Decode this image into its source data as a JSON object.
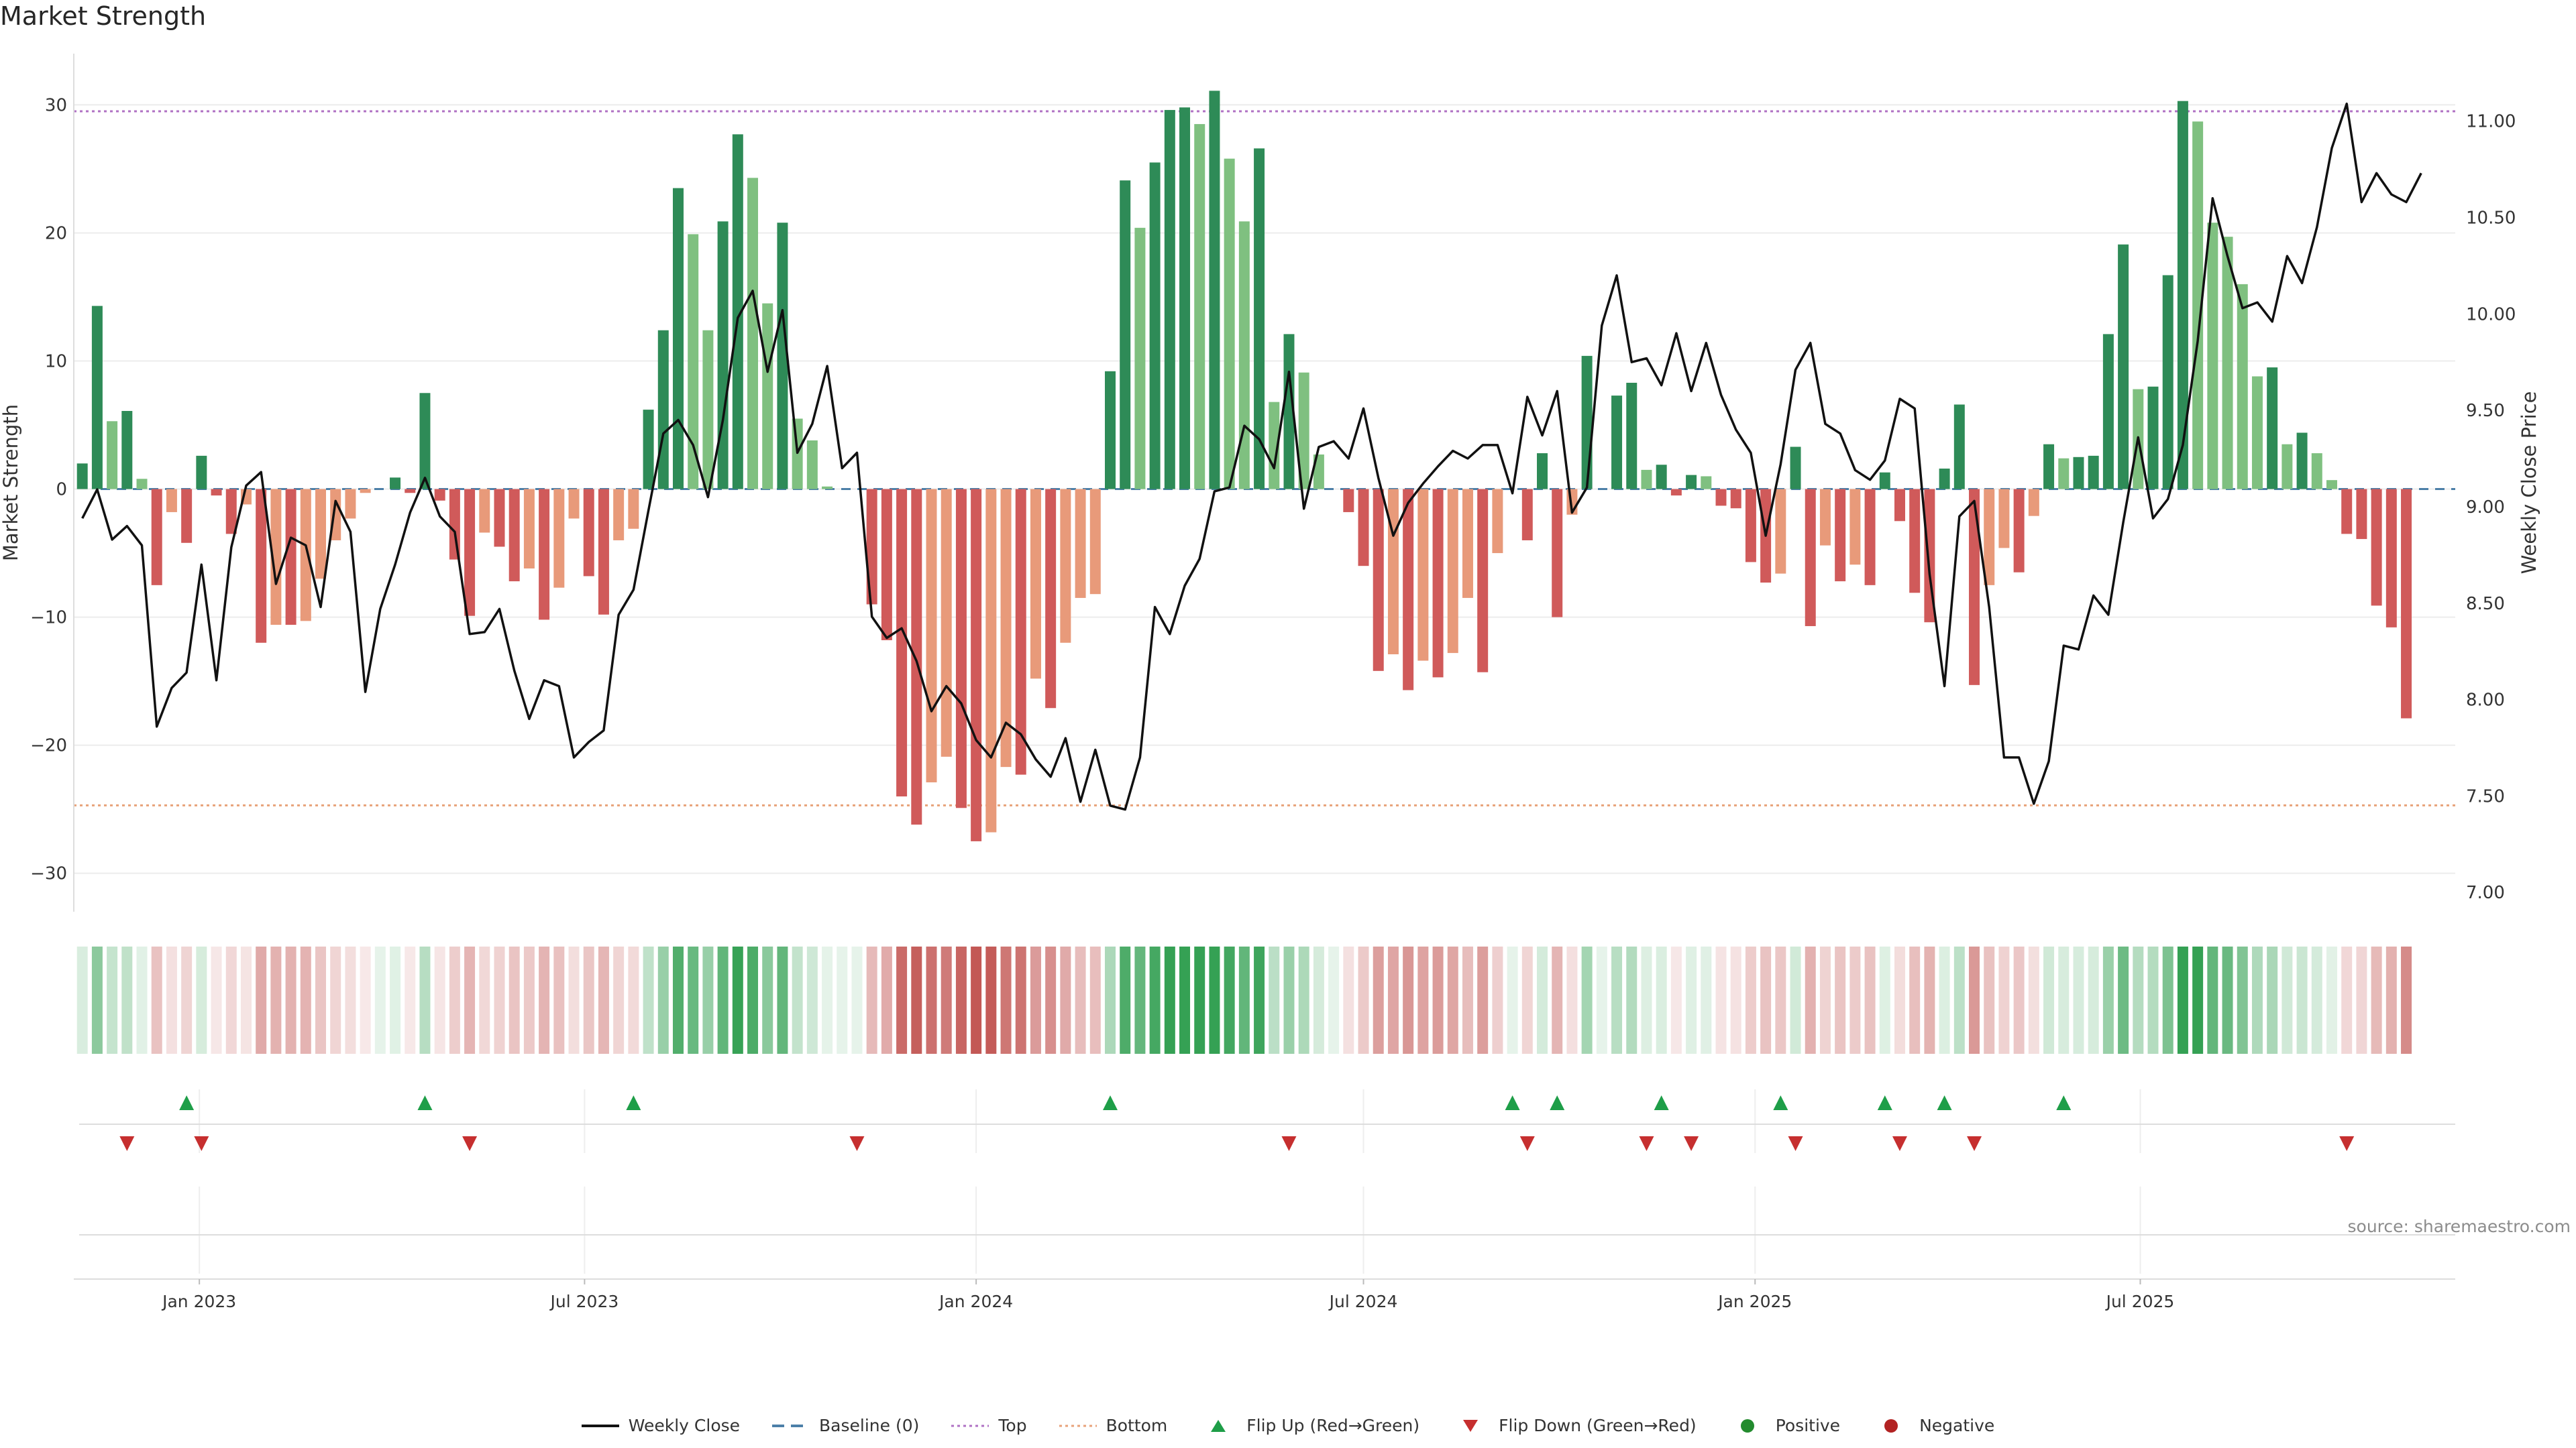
{
  "chart_data": {
    "type": "bar",
    "title": "Market Strength",
    "ylabel_left": "Market Strength",
    "ylabel_right": "Weekly Close Price",
    "ylim_left": [
      -33,
      34
    ],
    "ylim_right": [
      6.9,
      11.35
    ],
    "yticks_left": [
      30,
      20,
      10,
      0,
      -10,
      -20,
      -30
    ],
    "yticks_left_labels": [
      "30",
      "20",
      "10",
      "0",
      "−10",
      "−20",
      "−30"
    ],
    "yticks_right": [
      11.0,
      10.5,
      10.0,
      9.5,
      9.0,
      8.5,
      8.0,
      7.5,
      7.0
    ],
    "yticks_right_labels": [
      "11.00",
      "10.50",
      "10.00",
      "9.50",
      "9.00",
      "8.50",
      "8.00",
      "7.50",
      "7.00"
    ],
    "x_start": "2022-11-07",
    "x_step_days": 7,
    "xlim": [
      "2022-11-03",
      "2025-11-26"
    ],
    "xticks": [
      "2023-01-01",
      "2023-07-01",
      "2024-01-01",
      "2024-07-01",
      "2025-01-01",
      "2025-07-01"
    ],
    "xtick_labels": [
      "Jan 2023",
      "Jul 2023",
      "Jan 2024",
      "Jul 2024",
      "Jan 2025",
      "Jul 2025"
    ],
    "top_line": 29.5,
    "bottom_line": -24.7,
    "strength": [
      2,
      14.3,
      5.3,
      6.1,
      0.8,
      -7.5,
      -1.8,
      -4.2,
      2.6,
      -0.5,
      -3.5,
      -1.2,
      -12,
      -10.6,
      -10.6,
      -10.3,
      -7,
      -4,
      -2.3,
      -0.3,
      0,
      0.9,
      -0.3,
      7.5,
      -0.9,
      -5.5,
      -9.9,
      -3.4,
      -4.5,
      -7.2,
      -6.2,
      -10.2,
      -7.7,
      -2.3,
      -6.8,
      -9.8,
      -4,
      -3.1,
      6.2,
      12.4,
      23.5,
      19.9,
      12.4,
      20.9,
      27.7,
      24.3,
      14.5,
      20.8,
      5.5,
      3.8,
      0.2,
      0,
      0,
      -9,
      -11.8,
      -24,
      -26.2,
      -22.9,
      -20.9,
      -24.9,
      -27.5,
      -26.8,
      -21.7,
      -22.3,
      -14.8,
      -17.1,
      -12,
      -8.5,
      -8.2,
      9.2,
      24.1,
      20.4,
      25.5,
      29.6,
      29.8,
      28.5,
      31.1,
      25.8,
      20.9,
      26.6,
      6.8,
      12.1,
      9.1,
      2.7,
      0,
      -1.8,
      -6,
      -14.2,
      -12.9,
      -15.7,
      -13.4,
      -14.7,
      -12.8,
      -8.5,
      -14.3,
      -5,
      0,
      -4,
      2.8,
      -10,
      -2,
      10.4,
      0,
      7.3,
      8.3,
      1.5,
      1.9,
      -0.5,
      1.1,
      1,
      -1.3,
      -1.5,
      -5.7,
      -7.3,
      -6.6,
      3.3,
      -10.7,
      -4.4,
      -7.2,
      -5.9,
      -7.5,
      1.3,
      -2.5,
      -8.1,
      -10.4,
      1.6,
      6.6,
      -15.3,
      -7.5,
      -4.6,
      -6.5,
      -2.1,
      3.5,
      2.4,
      2.5,
      2.6,
      12.1,
      19.1,
      7.8,
      8,
      16.7,
      30.3,
      28.7,
      20.8,
      19.7,
      16,
      8.8,
      9.5,
      3.5,
      4.4,
      2.8,
      0.7,
      -3.5,
      -3.9,
      -9.1,
      -10.8,
      -17.9
    ],
    "weekly_close": [
      8.94,
      9.09,
      8.83,
      8.9,
      8.8,
      7.86,
      8.06,
      8.14,
      8.7,
      8.1,
      8.79,
      9.11,
      9.18,
      8.6,
      8.84,
      8.8,
      8.48,
      9.03,
      8.87,
      8.04,
      8.47,
      8.7,
      8.97,
      9.15,
      8.95,
      8.87,
      8.34,
      8.35,
      8.47,
      8.15,
      7.9,
      8.1,
      8.07,
      7.7,
      7.78,
      7.84,
      8.44,
      8.57,
      8.98,
      9.38,
      9.45,
      9.32,
      9.05,
      9.45,
      9.98,
      10.12,
      9.7,
      10.02,
      9.28,
      9.43,
      9.73,
      9.2,
      9.28,
      8.43,
      8.32,
      8.37,
      8.2,
      7.94,
      8.07,
      7.98,
      7.79,
      7.7,
      7.88,
      7.82,
      7.69,
      7.6,
      7.8,
      7.47,
      7.74,
      7.45,
      7.43,
      7.7,
      8.48,
      8.34,
      8.59,
      8.73,
      9.08,
      9.1,
      9.42,
      9.35,
      9.2,
      9.7,
      8.99,
      9.31,
      9.34,
      9.25,
      9.51,
      9.15,
      8.85,
      9.02,
      9.12,
      9.21,
      9.29,
      9.25,
      9.32,
      9.32,
      9.07,
      9.57,
      9.37,
      9.6,
      8.97,
      9.1,
      9.94,
      10.2,
      9.75,
      9.77,
      9.63,
      9.9,
      9.6,
      9.85,
      9.58,
      9.4,
      9.28,
      8.85,
      9.22,
      9.71,
      9.85,
      9.43,
      9.38,
      9.19,
      9.14,
      9.24,
      9.56,
      9.51,
      8.65,
      8.07,
      8.95,
      9.03,
      8.48,
      7.7,
      7.7,
      7.46,
      7.68,
      8.28,
      8.26,
      8.54,
      8.44,
      8.92,
      9.36,
      8.94,
      9.04,
      9.32,
      9.86,
      10.6,
      10.3,
      10.03,
      10.06,
      9.96,
      10.3,
      10.16,
      10.45,
      10.86,
      11.09,
      10.58,
      10.73,
      10.62,
      10.58,
      10.73
    ],
    "flip_up": [
      "2022-12-26",
      "2023-04-17",
      "2023-07-24",
      "2024-03-04",
      "2024-09-09",
      "2024-09-30",
      "2024-11-18",
      "2025-01-13",
      "2025-03-03",
      "2025-03-31",
      "2025-05-26"
    ],
    "flip_down": [
      "2022-11-28",
      "2023-01-02",
      "2023-05-08",
      "2023-11-06",
      "2024-05-27",
      "2024-09-16",
      "2024-11-11",
      "2024-12-02",
      "2025-01-20",
      "2025-03-10",
      "2025-04-14",
      "2025-10-06"
    ],
    "legend": [
      {
        "label": "Weekly Close",
        "symbol": "line",
        "color": "#111111"
      },
      {
        "label": "Baseline (0)",
        "symbol": "dash",
        "color": "#4c7fa8"
      },
      {
        "label": "Top",
        "symbol": "dotted",
        "color": "#b071c4"
      },
      {
        "label": "Bottom",
        "symbol": "dotted",
        "color": "#e8a27a"
      },
      {
        "label": "Flip Up (Red→Green)",
        "symbol": "triangle-up",
        "color": "#1e9e48"
      },
      {
        "label": "Flip Down (Green→Red)",
        "symbol": "triangle-down",
        "color": "#c62f2f"
      },
      {
        "label": "Positive",
        "symbol": "circle",
        "color": "#238b2e"
      },
      {
        "label": "Negative",
        "symbol": "circle",
        "color": "#b22222"
      }
    ],
    "colors": {
      "pos_strong": "#2e8b57",
      "pos_light": "#7fc080",
      "neg_strong": "#d05a5a",
      "neg_light": "#e89a7a",
      "price": "#111111",
      "top": "#b071c4",
      "bottom": "#e8a27a",
      "baseline": "#4c7fa8",
      "flip_up": "#1e9e48",
      "flip_down": "#c62f2f"
    }
  },
  "source": "source: sharemaestro.com"
}
